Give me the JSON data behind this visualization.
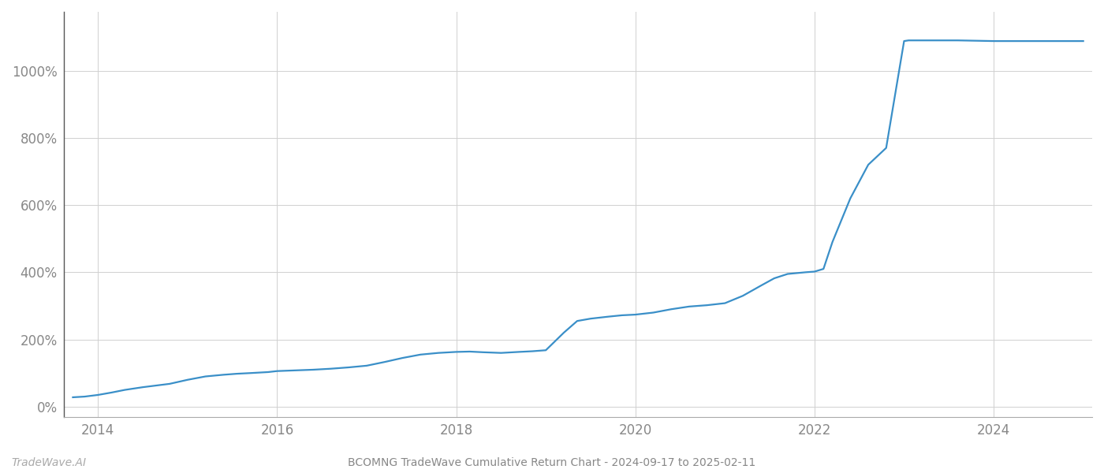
{
  "title": "BCOMNG TradeWave Cumulative Return Chart - 2024-09-17 to 2025-02-11",
  "watermark": "TradeWave.AI",
  "line_color": "#3a8fc8",
  "background_color": "#ffffff",
  "grid_color": "#d0d0d0",
  "x_ticks": [
    2014,
    2016,
    2018,
    2020,
    2022,
    2024
  ],
  "y_ticks": [
    0,
    200,
    400,
    600,
    800,
    1000
  ],
  "xlim": [
    2013.62,
    2025.1
  ],
  "ylim": [
    -30,
    1175
  ],
  "data_x": [
    2013.72,
    2013.85,
    2014.0,
    2014.15,
    2014.3,
    2014.5,
    2014.65,
    2014.8,
    2015.0,
    2015.2,
    2015.4,
    2015.55,
    2015.7,
    2015.9,
    2016.0,
    2016.2,
    2016.4,
    2016.6,
    2016.8,
    2017.0,
    2017.2,
    2017.4,
    2017.6,
    2017.8,
    2018.0,
    2018.15,
    2018.3,
    2018.5,
    2018.7,
    2018.85,
    2019.0,
    2019.2,
    2019.35,
    2019.5,
    2019.7,
    2019.85,
    2020.0,
    2020.2,
    2020.4,
    2020.6,
    2020.8,
    2021.0,
    2021.2,
    2021.4,
    2021.55,
    2021.7,
    2021.9,
    2022.0,
    2022.1,
    2022.2,
    2022.4,
    2022.6,
    2022.8,
    2023.0,
    2023.05,
    2023.15,
    2023.2,
    2023.3,
    2023.6,
    2024.0,
    2024.3,
    2024.6,
    2024.9,
    2025.0
  ],
  "data_y": [
    28,
    30,
    35,
    42,
    50,
    58,
    63,
    68,
    80,
    90,
    95,
    98,
    100,
    103,
    106,
    108,
    110,
    113,
    117,
    122,
    133,
    145,
    155,
    160,
    163,
    164,
    162,
    160,
    163,
    165,
    168,
    220,
    255,
    262,
    268,
    272,
    274,
    280,
    290,
    298,
    302,
    308,
    330,
    360,
    382,
    395,
    400,
    402,
    410,
    490,
    620,
    720,
    770,
    1088,
    1090,
    1090,
    1090,
    1090,
    1090,
    1088,
    1088,
    1088,
    1088,
    1088
  ],
  "tick_fontsize": 12,
  "footer_fontsize": 10,
  "line_width": 1.6
}
